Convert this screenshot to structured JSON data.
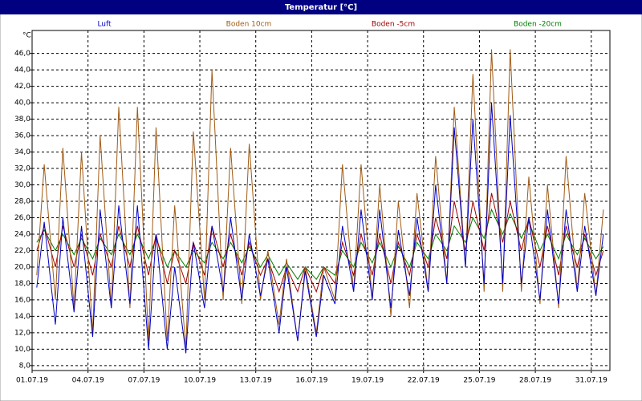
{
  "chart_data": {
    "type": "line",
    "title": "Temperatur [°C]",
    "y_label": "°C",
    "x": [
      1.25,
      1.65,
      2.25,
      2.65,
      3.25,
      3.65,
      4.25,
      4.65,
      5.25,
      5.65,
      6.25,
      6.65,
      7.25,
      7.65,
      8.25,
      8.65,
      9.25,
      9.65,
      10.25,
      10.65,
      11.25,
      11.65,
      12.25,
      12.65,
      13.25,
      13.65,
      14.25,
      14.65,
      15.25,
      15.65,
      16.25,
      16.65,
      17.25,
      17.65,
      18.25,
      18.65,
      19.25,
      19.65,
      20.25,
      20.65,
      21.25,
      21.65,
      22.25,
      22.65,
      23.25,
      23.65,
      24.25,
      24.65,
      25.25,
      25.65,
      26.25,
      26.65,
      27.25,
      27.65,
      28.25,
      28.65,
      29.25,
      29.65,
      30.25,
      30.65,
      31.25,
      31.65
    ],
    "series": [
      {
        "name": "Luft",
        "color": "#0000c8",
        "values": [
          17.5,
          25.5,
          13,
          26,
          14.5,
          25,
          11.5,
          27,
          15,
          27.5,
          15.5,
          27.5,
          10,
          24,
          10,
          20,
          9.5,
          23,
          15,
          25,
          17,
          26,
          16,
          24,
          16.5,
          21,
          12,
          20,
          11,
          19.5,
          11.5,
          19,
          15.5,
          25,
          17,
          27,
          16,
          27,
          15,
          24.5,
          16.5,
          26,
          17,
          30,
          18,
          37,
          20,
          38,
          18,
          40,
          18,
          38.5,
          18,
          26,
          16,
          27,
          15.5,
          27,
          17,
          25,
          16.5,
          24
        ]
      },
      {
        "name": "Boden 10cm",
        "color": "#a05a14",
        "values": [
          19,
          32.5,
          16,
          34.5,
          15,
          34,
          12,
          36,
          15,
          39.5,
          15,
          39.5,
          11,
          37,
          11,
          27.5,
          10,
          36.5,
          16,
          44,
          16,
          34.5,
          15.5,
          35,
          16,
          22,
          13,
          21,
          11,
          20,
          12,
          20,
          16,
          32.5,
          17,
          32.5,
          16,
          30,
          14,
          28,
          15,
          29,
          17,
          33.5,
          18,
          39.5,
          20,
          43.5,
          17,
          46.5,
          17,
          46.5,
          17,
          31,
          15.5,
          30,
          15,
          33.5,
          17,
          29,
          16.5,
          27
        ]
      },
      {
        "name": "Boden -5cm",
        "color": "#a00000",
        "values": [
          22,
          25,
          20,
          25,
          20,
          24,
          19,
          24,
          20,
          25,
          20,
          25,
          19,
          24,
          18,
          22,
          18,
          23,
          19,
          25,
          20,
          24,
          19,
          23,
          19,
          21,
          17,
          20,
          17,
          20,
          17,
          20,
          18,
          23,
          19,
          24,
          19,
          24,
          18,
          23,
          19,
          24,
          20,
          26,
          21,
          28,
          22,
          28,
          22,
          29,
          23,
          28,
          22,
          26,
          20,
          25,
          19,
          25,
          20,
          24,
          19,
          22
        ]
      },
      {
        "name": "Boden -20cm",
        "color": "#008000",
        "values": [
          23,
          24.5,
          22,
          24,
          21.5,
          23.5,
          21,
          23.5,
          21.5,
          24,
          21.5,
          24,
          21,
          23.5,
          20,
          22,
          20,
          22,
          20.5,
          23,
          21,
          23,
          20.5,
          22.5,
          20,
          21.5,
          19,
          20.5,
          18.5,
          20,
          18.5,
          20,
          19,
          22,
          20,
          23,
          20.5,
          23,
          20,
          22.5,
          20,
          23,
          21,
          24,
          22,
          25,
          23,
          26,
          23.5,
          27,
          24,
          26.5,
          23.5,
          25.5,
          22,
          24,
          21,
          24,
          21.5,
          23.5,
          21,
          22.5
        ]
      }
    ],
    "xlim": [
      1,
      32
    ],
    "xticks": [
      {
        "value": 1,
        "label": "01.07.19"
      },
      {
        "value": 4,
        "label": "04.07.19"
      },
      {
        "value": 7,
        "label": "07.07.19"
      },
      {
        "value": 10,
        "label": "10.07.19"
      },
      {
        "value": 13,
        "label": "13.07.19"
      },
      {
        "value": 16,
        "label": "16.07.19"
      },
      {
        "value": 19,
        "label": "19.07.19"
      },
      {
        "value": 22,
        "label": "22.07.19"
      },
      {
        "value": 25,
        "label": "25.07.19"
      },
      {
        "value": 28,
        "label": "28.07.19"
      },
      {
        "value": 31,
        "label": "31.07.19"
      }
    ],
    "ylim": [
      7.4,
      48.8
    ],
    "yticks": [
      {
        "value": 8,
        "label": "8,0"
      },
      {
        "value": 10,
        "label": "10,0"
      },
      {
        "value": 12,
        "label": "12,0"
      },
      {
        "value": 14,
        "label": "14,0"
      },
      {
        "value": 16,
        "label": "16,0"
      },
      {
        "value": 18,
        "label": "18,0"
      },
      {
        "value": 20,
        "label": "20,0"
      },
      {
        "value": 22,
        "label": "22,0"
      },
      {
        "value": 24,
        "label": "24,0"
      },
      {
        "value": 26,
        "label": "26,0"
      },
      {
        "value": 28,
        "label": "28,0"
      },
      {
        "value": 30,
        "label": "30,0"
      },
      {
        "value": 32,
        "label": "32,0"
      },
      {
        "value": 34,
        "label": "34,0"
      },
      {
        "value": 36,
        "label": "36,0"
      },
      {
        "value": 38,
        "label": "38,0"
      },
      {
        "value": 40,
        "label": "40,0"
      },
      {
        "value": 42,
        "label": "42,0"
      },
      {
        "value": 44,
        "label": "44,0"
      },
      {
        "value": 46,
        "label": "46,0"
      }
    ],
    "grid": true
  }
}
